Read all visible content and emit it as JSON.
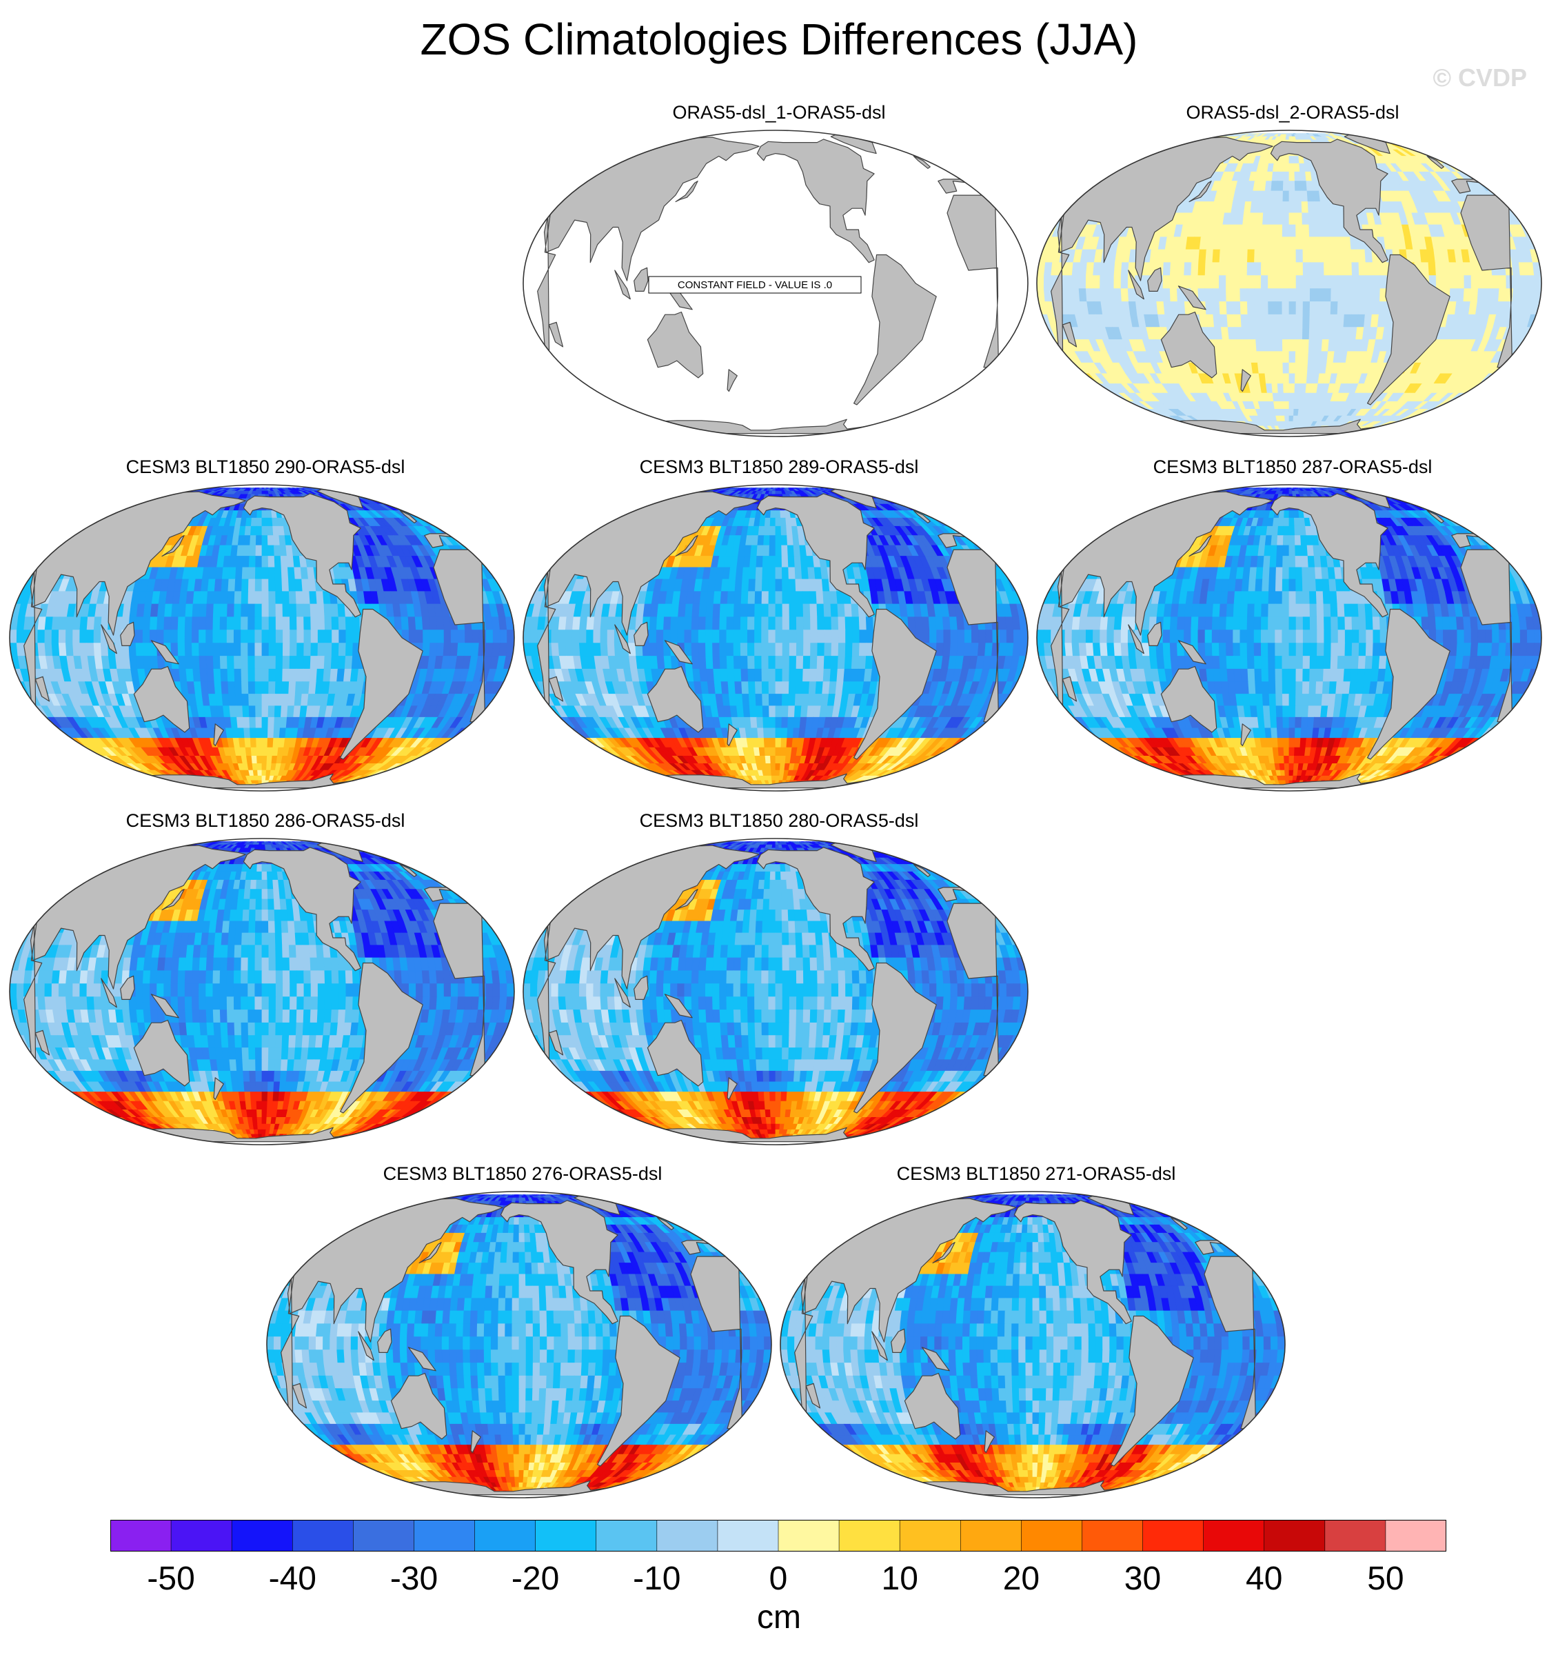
{
  "title": "ZOS Climatologies Differences (JJA)",
  "credit": "© CVDP",
  "panels": [
    {
      "id": "p1",
      "title": "ORAS5-dsl_1-ORAS5-dsl",
      "style": "constant",
      "note": "CONSTANT FIELD - VALUE IS .0"
    },
    {
      "id": "p2",
      "title": "ORAS5-dsl_2-ORAS5-dsl",
      "style": "near-zero"
    },
    {
      "id": "p3",
      "title": "CESM3 BLT1850 290-ORAS5-dsl",
      "style": "model"
    },
    {
      "id": "p4",
      "title": "CESM3 BLT1850 289-ORAS5-dsl",
      "style": "model"
    },
    {
      "id": "p5",
      "title": "CESM3 BLT1850 287-ORAS5-dsl",
      "style": "model"
    },
    {
      "id": "p6",
      "title": "CESM3 BLT1850 286-ORAS5-dsl",
      "style": "model"
    },
    {
      "id": "p7",
      "title": "CESM3 BLT1850 280-ORAS5-dsl",
      "style": "model"
    },
    {
      "id": "p8",
      "title": "CESM3 BLT1850 276-ORAS5-dsl",
      "style": "model"
    },
    {
      "id": "p9",
      "title": "CESM3 BLT1850 271-ORAS5-dsl",
      "style": "model"
    }
  ],
  "colorbar": {
    "units": "cm",
    "range": [
      -55,
      55
    ],
    "bin_width": 5,
    "tick_values": [
      -50,
      -40,
      -30,
      -20,
      -10,
      0,
      10,
      20,
      30,
      40,
      50
    ],
    "tick_labels": [
      "-50",
      "-40",
      "-30",
      "-20",
      "-10",
      "0",
      "10",
      "20",
      "30",
      "40",
      "50"
    ],
    "colors": [
      "#8a20f0",
      "#4b14f5",
      "#1414fa",
      "#2a4fe8",
      "#3a6fe0",
      "#2f86f2",
      "#1aa0f5",
      "#12c0f8",
      "#5ac4f2",
      "#9ccdf0",
      "#c4e2f7",
      "#fff8a0",
      "#ffe040",
      "#ffc020",
      "#ffa810",
      "#ff8800",
      "#ff5a08",
      "#ff2a08",
      "#e80808",
      "#c80808",
      "#d84040",
      "#ffb4b4"
    ]
  },
  "colors": {
    "land": "#bebebe",
    "coast": "#444444",
    "ocean_blank": "#ffffff"
  }
}
